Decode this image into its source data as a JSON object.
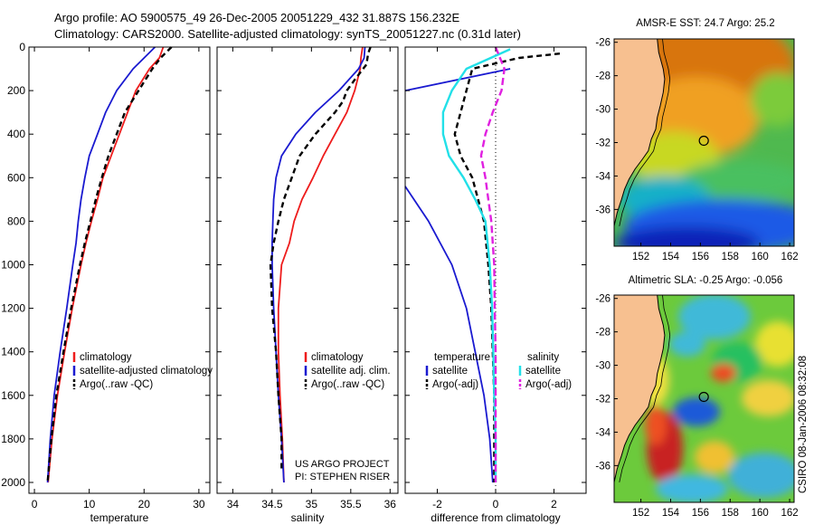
{
  "header": {
    "line1": "Argo profile: AO 5900575_49 26-Dec-2005 20051229_432 31.887S 156.232E",
    "line2": "Climatology: CARS2000. Satellite-adjusted climatology: synTS_20051227.nc (0.31d later)"
  },
  "stamp": "CSIRO 08-Jan-2006 08:32:08",
  "colors": {
    "climatology": "#ee1c1c",
    "satellite": "#1a1ad0",
    "argo": "#000000",
    "sat_salinity": "#22e0e8",
    "argo_salinity": "#e020e0",
    "land": "#f7c090"
  },
  "chart_data": [
    {
      "type": "line",
      "id": "temperature",
      "xlabel": "temperature",
      "ylabel": "",
      "xlim": [
        -1,
        32
      ],
      "ylim": [
        2050,
        0
      ],
      "xticks": [
        0,
        10,
        20,
        30
      ],
      "yticks": [
        0,
        200,
        400,
        600,
        800,
        1000,
        1200,
        1400,
        1600,
        1800,
        2000
      ],
      "legend": [
        "climatology",
        "satellite-adjusted climatology",
        "Argo(..raw -QC)"
      ],
      "series": [
        {
          "name": "climatology",
          "color": "red",
          "dash": "",
          "depth": [
            0,
            50,
            100,
            200,
            300,
            400,
            500,
            600,
            700,
            800,
            900,
            1000,
            1200,
            1400,
            1600,
            1800,
            2000
          ],
          "values": [
            23.5,
            22.8,
            21.0,
            18.5,
            17.0,
            15.5,
            14.0,
            12.5,
            11.5,
            10.4,
            9.4,
            8.5,
            6.9,
            5.5,
            4.2,
            3.2,
            2.5
          ]
        },
        {
          "name": "satellite-adjusted climatology",
          "color": "blue",
          "dash": "",
          "depth": [
            0,
            50,
            100,
            200,
            300,
            400,
            500,
            600,
            700,
            800,
            900,
            1000,
            1200,
            1400,
            1600,
            1800,
            2000
          ],
          "values": [
            22.0,
            20.0,
            18.0,
            15.0,
            13.0,
            11.5,
            10.0,
            9.2,
            8.5,
            8.0,
            7.6,
            7.0,
            5.9,
            4.7,
            3.6,
            2.9,
            2.4
          ]
        },
        {
          "name": "Argo(..raw -QC)",
          "color": "black",
          "dash": "6,4",
          "depth": [
            0,
            50,
            100,
            200,
            300,
            400,
            500,
            600,
            700,
            800,
            900,
            1000,
            1200,
            1400,
            1600,
            1800,
            2000
          ],
          "values": [
            25.0,
            23.0,
            21.5,
            19.0,
            16.5,
            15.0,
            13.5,
            12.3,
            11.2,
            10.2,
            9.2,
            8.3,
            6.7,
            5.3,
            4.0,
            3.1,
            2.4
          ]
        }
      ]
    },
    {
      "type": "line",
      "id": "salinity",
      "xlabel": "salinity",
      "ylabel": "",
      "xlim": [
        33.8,
        36.1
      ],
      "ylim": [
        2050,
        0
      ],
      "xticks": [
        34,
        34.5,
        35,
        35.5,
        36
      ],
      "legend": [
        "climatology",
        "satellite adj. clim.",
        "Argo(..raw -QC)"
      ],
      "series": [
        {
          "name": "climatology",
          "color": "red",
          "dash": "",
          "depth": [
            0,
            50,
            100,
            200,
            300,
            400,
            500,
            600,
            700,
            800,
            900,
            1000,
            1200,
            1400,
            1600,
            1800,
            2000
          ],
          "values": [
            35.65,
            35.63,
            35.62,
            35.55,
            35.45,
            35.3,
            35.15,
            35.02,
            34.88,
            34.78,
            34.72,
            34.62,
            34.58,
            34.58,
            34.6,
            34.63,
            34.65
          ]
        },
        {
          "name": "satellite adj. clim.",
          "color": "blue",
          "dash": "",
          "depth": [
            0,
            50,
            100,
            200,
            300,
            400,
            500,
            600,
            700,
            800,
            900,
            1000,
            1200,
            1400,
            1600,
            1800,
            2000
          ],
          "values": [
            35.68,
            35.67,
            35.6,
            35.35,
            35.05,
            34.8,
            34.62,
            34.55,
            34.52,
            34.51,
            34.5,
            34.5,
            34.52,
            34.55,
            34.58,
            34.62,
            34.65
          ]
        },
        {
          "name": "Argo(..raw -QC)",
          "color": "black",
          "dash": "6,4",
          "depth": [
            0,
            30,
            80,
            150,
            200,
            250,
            300,
            400,
            500,
            600,
            700,
            800,
            900,
            1000,
            1200,
            1400,
            1600,
            1800,
            1950
          ],
          "values": [
            35.75,
            35.72,
            35.7,
            35.55,
            35.45,
            35.4,
            35.3,
            35.05,
            34.85,
            34.75,
            34.65,
            34.58,
            34.52,
            34.48,
            34.5,
            34.55,
            34.58,
            34.62,
            34.62
          ]
        }
      ],
      "annotations": [
        "US ARGO PROJECT",
        "PI: STEPHEN RISER"
      ]
    },
    {
      "type": "line",
      "id": "difference",
      "xlabel": "difference from climatology",
      "ylabel": "",
      "xlim": [
        -3.1,
        3.1
      ],
      "ylim": [
        2050,
        0
      ],
      "xticks": [
        -2,
        0,
        2
      ],
      "legend": [
        "temperature",
        "satellite",
        "Argo(-adj)",
        "salinity",
        "satellite",
        "Argo(-adj)"
      ],
      "series": [
        {
          "name": "temperature satellite",
          "color": "blue",
          "dash": "",
          "depth": [
            100,
            200
          ],
          "values": [
            0.5,
            -3.1
          ]
        },
        {
          "name": "temperature satellite deep",
          "color": "blue",
          "dash": "",
          "depth": [
            640,
            800,
            1000,
            1200,
            1400,
            1600,
            1800,
            2000
          ],
          "values": [
            -3.1,
            -2.3,
            -1.5,
            -1.0,
            -0.7,
            -0.4,
            -0.2,
            -0.1
          ]
        },
        {
          "name": "temperature Argo(-adj)",
          "color": "black",
          "dash": "6,4",
          "depth": [
            30,
            50,
            100,
            200,
            300,
            400,
            500,
            600,
            700,
            800,
            1000,
            1200,
            1400,
            1600,
            1800,
            2000
          ],
          "values": [
            2.2,
            0.8,
            -0.8,
            -1.0,
            -1.2,
            -1.4,
            -1.2,
            -0.8,
            -0.6,
            -0.4,
            -0.25,
            -0.15,
            -0.1,
            -0.05,
            -0.05,
            -0.05
          ]
        },
        {
          "name": "salinity satellite",
          "color": "cyan",
          "dash": "",
          "depth": [
            10,
            100,
            200,
            300,
            400,
            500,
            600,
            700,
            800,
            1000,
            1200,
            1400,
            1600,
            1800,
            2000
          ],
          "values": [
            0.5,
            -1.0,
            -1.5,
            -1.8,
            -1.8,
            -1.6,
            -1.1,
            -0.7,
            -0.35,
            -0.2,
            -0.12,
            -0.08,
            -0.05,
            0.0,
            0.0
          ]
        },
        {
          "name": "salinity Argo(-adj)",
          "color": "magenta",
          "dash": "8,4",
          "depth": [
            0,
            100,
            200,
            300,
            400,
            500,
            600,
            700,
            800,
            1000,
            1200,
            1400,
            1600,
            1800,
            2000
          ],
          "values": [
            0.0,
            0.3,
            0.2,
            -0.1,
            -0.35,
            -0.5,
            -0.35,
            -0.25,
            -0.15,
            -0.05,
            -0.03,
            0.0,
            0.0,
            0.0,
            0.0
          ]
        }
      ]
    }
  ],
  "maps": [
    {
      "id": "sst",
      "title": "AMSR-E SST: 24.7 Argo: 25.2",
      "xticks": [
        152,
        154,
        156,
        158,
        160,
        162
      ],
      "yticks": [
        -26,
        -28,
        -30,
        -32,
        -34,
        -36
      ],
      "lon_range": [
        150.2,
        162.3
      ],
      "lat_range": [
        -38.2,
        -25.8
      ],
      "argo_position": {
        "lon": 156.23,
        "lat": -31.89
      }
    },
    {
      "id": "sla",
      "title": "Altimetric SLA: -0.25 Argo: -0.056",
      "xticks": [
        152,
        154,
        156,
        158,
        160,
        162
      ],
      "yticks": [
        -26,
        -28,
        -30,
        -32,
        -34,
        -36
      ],
      "lon_range": [
        150.2,
        162.3
      ],
      "lat_range": [
        -38.2,
        -25.8
      ],
      "argo_position": {
        "lon": 156.23,
        "lat": -31.89
      }
    }
  ]
}
